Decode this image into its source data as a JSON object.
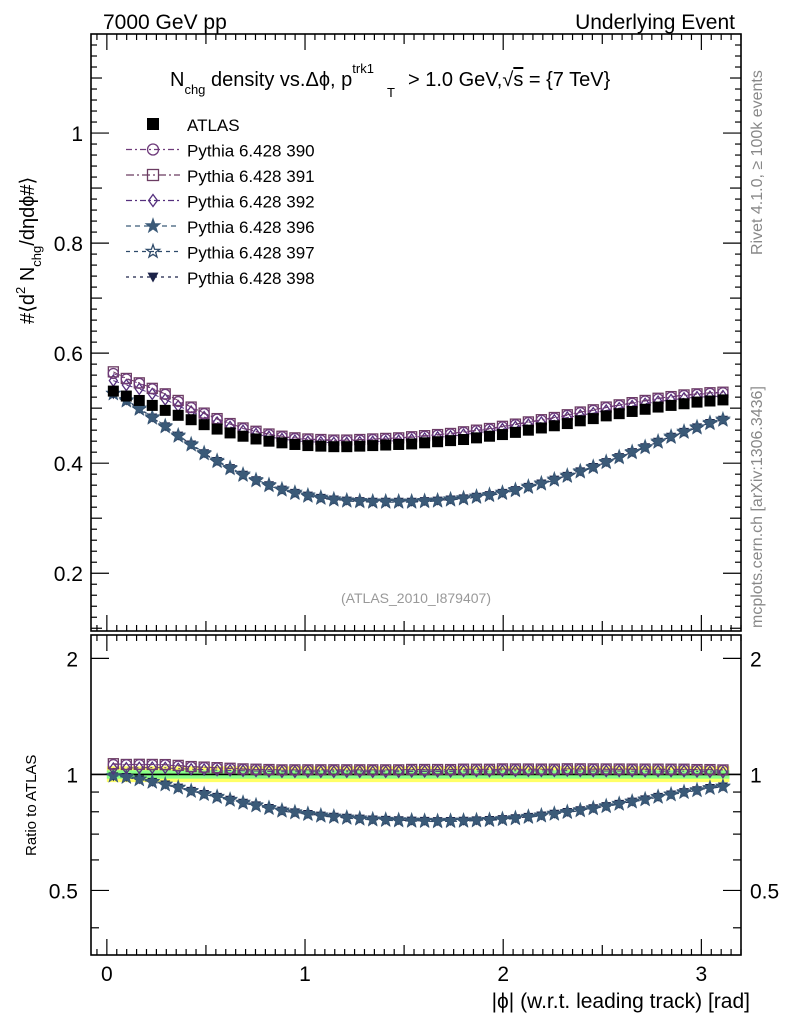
{
  "header": {
    "left": "7000 GeV pp",
    "right": "Underlying Event"
  },
  "side_labels": {
    "rivet": "Rivet 4.1.0, ≥ 100k events",
    "mcplots": "mcplots.cern.ch [arXiv:1306.3436]"
  },
  "watermark": "(ATLAS_2010_I879407)",
  "title": {
    "text1": "N",
    "sub1": "chg",
    "text2": " density vs.Δϕ, p",
    "sup2": "trk1",
    "sub2": "T",
    "text3": " > 1.0 GeV,",
    "sqrt": "√",
    "s": "s",
    "text4": " = {7 TeV}"
  },
  "ylabel_main": "#⟨d² N_chg/dηdϕ#⟩",
  "ylabel_ratio": "Ratio to ATLAS",
  "xlabel": "|ϕ| (w.r.t. leading track) [rad]",
  "colors": {
    "data": "#000000",
    "p390": "#6f3b7b",
    "p391": "#6b3c62",
    "p392": "#55307e",
    "p396": "#3b5a78",
    "p397": "#2e4a6a",
    "p398": "#1b2248",
    "band_inner": "#88ff88",
    "band_outer": "#ffff66"
  },
  "chart_data": {
    "type": "scatter",
    "title": "N_chg density vs.Δϕ, p_T^trk1 > 1.0 GeV, √s = {7 TeV}",
    "xlabel": "|ϕ| (w.r.t. leading track) [rad]",
    "ylabel": "#⟨d² N_chg/dηdϕ#⟩",
    "xlim": [
      -0.08,
      3.2
    ],
    "ylim": [
      0.095,
      1.18
    ],
    "ratio_ylim": [
      0.34,
      2.3
    ],
    "ratio_ylabel": "Ratio to ATLAS",
    "legend_position": "top-left",
    "x_ticks": [
      0,
      1,
      2,
      3
    ],
    "y_ticks": [
      0.2,
      0.4,
      0.6,
      0.8,
      1
    ],
    "ratio_y_ticks": [
      0.5,
      1,
      2
    ],
    "x": [
      0.0327,
      0.0982,
      0.1636,
      0.2291,
      0.2945,
      0.36,
      0.4254,
      0.4909,
      0.5563,
      0.6218,
      0.6872,
      0.7527,
      0.8181,
      0.8836,
      0.949,
      1.0145,
      1.0799,
      1.1454,
      1.2108,
      1.2763,
      1.3417,
      1.4072,
      1.4726,
      1.5381,
      1.6035,
      1.669,
      1.7344,
      1.7999,
      1.8653,
      1.9308,
      1.9962,
      2.0617,
      2.1271,
      2.1926,
      2.258,
      2.3235,
      2.3889,
      2.4544,
      2.5198,
      2.5853,
      2.6507,
      2.7162,
      2.7816,
      2.8471,
      2.9125,
      2.978,
      3.0434,
      3.1089
    ],
    "series": [
      {
        "name": "ATLAS",
        "marker": "square-filled",
        "values": [
          0.531,
          0.522,
          0.514,
          0.505,
          0.496,
          0.487,
          0.479,
          0.47,
          0.462,
          0.455,
          0.449,
          0.444,
          0.44,
          0.437,
          0.434,
          0.432,
          0.431,
          0.43,
          0.43,
          0.431,
          0.432,
          0.433,
          0.434,
          0.435,
          0.437,
          0.439,
          0.441,
          0.443,
          0.446,
          0.449,
          0.452,
          0.456,
          0.46,
          0.464,
          0.468,
          0.472,
          0.477,
          0.481,
          0.486,
          0.49,
          0.494,
          0.498,
          0.502,
          0.505,
          0.508,
          0.511,
          0.513,
          0.515
        ]
      },
      {
        "name": "Pythia 6.428 390",
        "marker": "circle-open",
        "values": [
          0.563,
          0.553,
          0.545,
          0.535,
          0.525,
          0.512,
          0.501,
          0.49,
          0.48,
          0.471,
          0.463,
          0.457,
          0.452,
          0.448,
          0.445,
          0.443,
          0.442,
          0.441,
          0.441,
          0.442,
          0.443,
          0.444,
          0.445,
          0.447,
          0.449,
          0.451,
          0.453,
          0.456,
          0.459,
          0.462,
          0.466,
          0.47,
          0.474,
          0.478,
          0.482,
          0.487,
          0.492,
          0.496,
          0.501,
          0.505,
          0.509,
          0.513,
          0.517,
          0.52,
          0.523,
          0.525,
          0.527,
          0.528
        ]
      },
      {
        "name": "Pythia 6.428 391",
        "marker": "square-open",
        "values": [
          0.566,
          0.554,
          0.546,
          0.536,
          0.526,
          0.514,
          0.502,
          0.491,
          0.481,
          0.472,
          0.464,
          0.458,
          0.453,
          0.449,
          0.446,
          0.444,
          0.443,
          0.442,
          0.442,
          0.443,
          0.444,
          0.445,
          0.446,
          0.448,
          0.45,
          0.452,
          0.454,
          0.457,
          0.46,
          0.463,
          0.467,
          0.471,
          0.475,
          0.479,
          0.483,
          0.488,
          0.493,
          0.497,
          0.502,
          0.506,
          0.51,
          0.514,
          0.518,
          0.521,
          0.524,
          0.526,
          0.528,
          0.529
        ]
      },
      {
        "name": "Pythia 6.428 392",
        "marker": "diamond-open",
        "values": [
          0.55,
          0.542,
          0.535,
          0.526,
          0.516,
          0.504,
          0.494,
          0.484,
          0.474,
          0.466,
          0.459,
          0.453,
          0.448,
          0.444,
          0.441,
          0.439,
          0.438,
          0.437,
          0.437,
          0.438,
          0.439,
          0.44,
          0.441,
          0.443,
          0.445,
          0.447,
          0.449,
          0.452,
          0.455,
          0.458,
          0.462,
          0.466,
          0.47,
          0.474,
          0.478,
          0.483,
          0.487,
          0.491,
          0.496,
          0.5,
          0.504,
          0.508,
          0.512,
          0.515,
          0.518,
          0.52,
          0.521,
          0.522
        ]
      },
      {
        "name": "Pythia 6.428 396",
        "marker": "star-filled",
        "values": [
          0.527,
          0.515,
          0.5,
          0.484,
          0.468,
          0.451,
          0.435,
          0.419,
          0.405,
          0.392,
          0.38,
          0.37,
          0.361,
          0.353,
          0.347,
          0.342,
          0.338,
          0.335,
          0.333,
          0.332,
          0.331,
          0.331,
          0.331,
          0.331,
          0.332,
          0.333,
          0.335,
          0.337,
          0.34,
          0.343,
          0.347,
          0.352,
          0.358,
          0.364,
          0.371,
          0.378,
          0.386,
          0.394,
          0.403,
          0.412,
          0.421,
          0.43,
          0.44,
          0.449,
          0.458,
          0.466,
          0.474,
          0.48
        ]
      },
      {
        "name": "Pythia 6.428 397",
        "marker": "star-open",
        "values": [
          0.526,
          0.513,
          0.498,
          0.482,
          0.466,
          0.449,
          0.433,
          0.417,
          0.403,
          0.39,
          0.378,
          0.368,
          0.359,
          0.351,
          0.345,
          0.34,
          0.336,
          0.333,
          0.331,
          0.33,
          0.329,
          0.329,
          0.329,
          0.329,
          0.33,
          0.331,
          0.333,
          0.335,
          0.338,
          0.341,
          0.345,
          0.35,
          0.356,
          0.362,
          0.369,
          0.376,
          0.384,
          0.392,
          0.401,
          0.41,
          0.419,
          0.428,
          0.438,
          0.447,
          0.456,
          0.464,
          0.472,
          0.478
        ]
      },
      {
        "name": "Pythia 6.428 398",
        "marker": "triangle-down-filled",
        "values": [
          0.525,
          0.514,
          0.499,
          0.483,
          0.467,
          0.45,
          0.434,
          0.418,
          0.404,
          0.391,
          0.379,
          0.369,
          0.36,
          0.352,
          0.346,
          0.341,
          0.337,
          0.334,
          0.332,
          0.331,
          0.33,
          0.33,
          0.33,
          0.33,
          0.331,
          0.332,
          0.334,
          0.336,
          0.339,
          0.342,
          0.346,
          0.351,
          0.357,
          0.363,
          0.37,
          0.377,
          0.385,
          0.393,
          0.402,
          0.411,
          0.42,
          0.429,
          0.439,
          0.448,
          0.457,
          0.465,
          0.473,
          0.479
        ]
      }
    ]
  }
}
